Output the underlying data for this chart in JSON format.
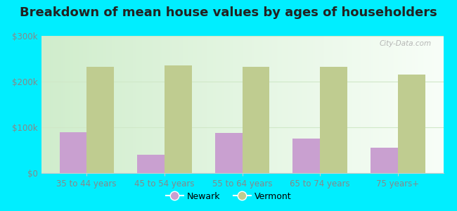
{
  "title": "Breakdown of mean house values by ages of householders",
  "categories": [
    "35 to 44 years",
    "45 to 54 years",
    "55 to 64 years",
    "65 to 74 years",
    "75 years+"
  ],
  "newark_values": [
    90000,
    40000,
    87000,
    75000,
    55000
  ],
  "vermont_values": [
    232000,
    235000,
    233000,
    232000,
    215000
  ],
  "newark_color": "#c9a0d0",
  "vermont_color": "#bfcc90",
  "background_color": "#00eeff",
  "plot_bg": "#e8f5e0",
  "ylim": [
    0,
    300000
  ],
  "yticks": [
    0,
    100000,
    200000,
    300000
  ],
  "ytick_labels": [
    "$0",
    "$100k",
    "$200k",
    "$300k"
  ],
  "legend_labels": [
    "Newark",
    "Vermont"
  ],
  "title_fontsize": 13,
  "tick_fontsize": 8.5,
  "legend_fontsize": 9,
  "bar_width": 0.35,
  "grid_color": "#d0e8c8",
  "tick_color": "#888888",
  "spine_color": "#cccccc"
}
